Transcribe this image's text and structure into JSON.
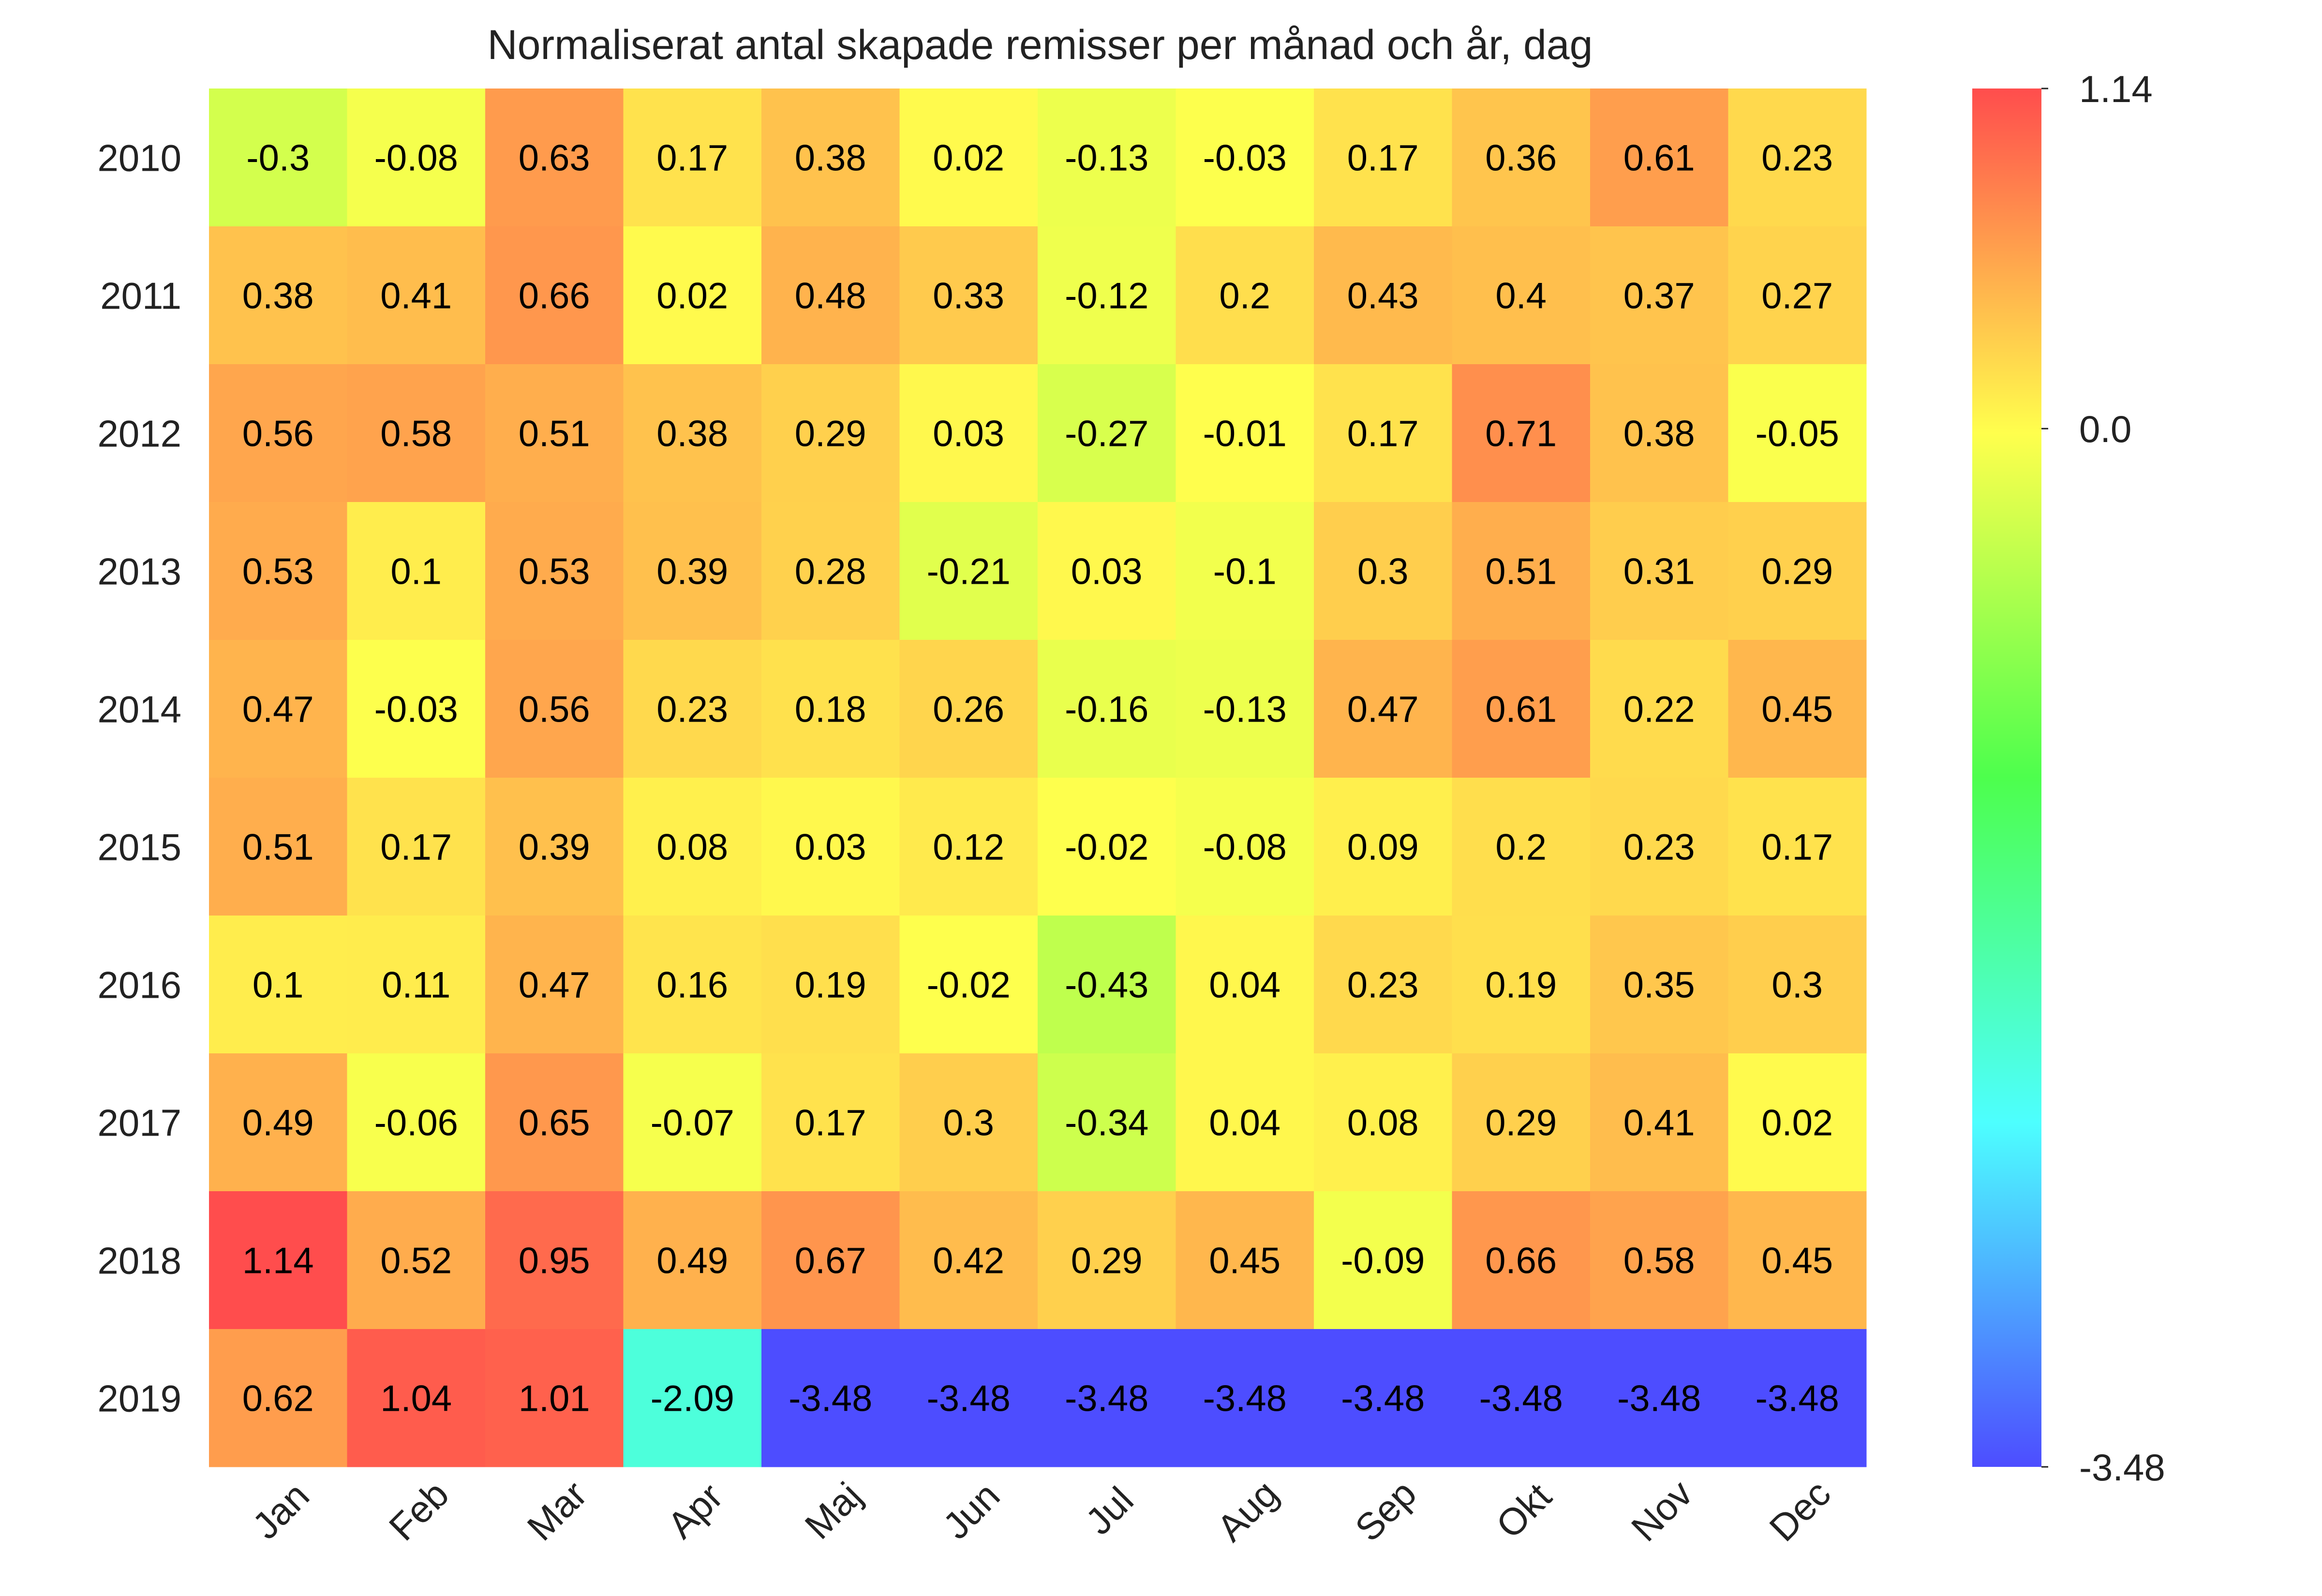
{
  "chart_data": {
    "type": "heatmap",
    "title": "Normaliserat antal skapade remisser per månad och år, dag",
    "xlabel": "",
    "ylabel": "",
    "x_categories": [
      "Jan",
      "Feb",
      "Mar",
      "Apr",
      "Maj",
      "Jun",
      "Jul",
      "Aug",
      "Sep",
      "Okt",
      "Nov",
      "Dec"
    ],
    "y_categories": [
      "2010",
      "2011",
      "2012",
      "2013",
      "2014",
      "2015",
      "2016",
      "2017",
      "2018",
      "2019"
    ],
    "values": [
      [
        -0.3,
        -0.08,
        0.63,
        0.17,
        0.38,
        0.02,
        -0.13,
        -0.03,
        0.17,
        0.36,
        0.61,
        0.23
      ],
      [
        0.38,
        0.41,
        0.66,
        0.02,
        0.48,
        0.33,
        -0.12,
        0.2,
        0.43,
        0.4,
        0.37,
        0.27
      ],
      [
        0.56,
        0.58,
        0.51,
        0.38,
        0.29,
        0.03,
        -0.27,
        -0.01,
        0.17,
        0.71,
        0.38,
        -0.05
      ],
      [
        0.53,
        0.1,
        0.53,
        0.39,
        0.28,
        -0.21,
        0.03,
        -0.1,
        0.3,
        0.51,
        0.31,
        0.29
      ],
      [
        0.47,
        -0.03,
        0.56,
        0.23,
        0.18,
        0.26,
        -0.16,
        -0.13,
        0.47,
        0.61,
        0.22,
        0.45
      ],
      [
        0.51,
        0.17,
        0.39,
        0.08,
        0.03,
        0.12,
        -0.02,
        -0.08,
        0.09,
        0.2,
        0.23,
        0.17
      ],
      [
        0.1,
        0.11,
        0.47,
        0.16,
        0.19,
        -0.02,
        -0.43,
        0.04,
        0.23,
        0.19,
        0.35,
        0.3
      ],
      [
        0.49,
        -0.06,
        0.65,
        -0.07,
        0.17,
        0.3,
        -0.34,
        0.04,
        0.08,
        0.29,
        0.41,
        0.02
      ],
      [
        1.14,
        0.52,
        0.95,
        0.49,
        0.67,
        0.42,
        0.29,
        0.45,
        -0.09,
        0.66,
        0.58,
        0.45
      ],
      [
        0.62,
        1.04,
        1.01,
        -2.09,
        -3.48,
        -3.48,
        -3.48,
        -3.48,
        -3.48,
        -3.48,
        -3.48,
        -3.48
      ]
    ],
    "value_range": [
      -3.48,
      1.14
    ],
    "colormap": "gist_rainbow (blue → cyan → green → yellow → red), semi-transparent",
    "colorbar": {
      "ticks": [
        1.14,
        0.0,
        -3.48
      ],
      "tick_labels": [
        "1.14",
        "0.0",
        "-3.48"
      ],
      "placement": "right"
    },
    "grid": false,
    "annotations": "cell values printed in each cell"
  }
}
